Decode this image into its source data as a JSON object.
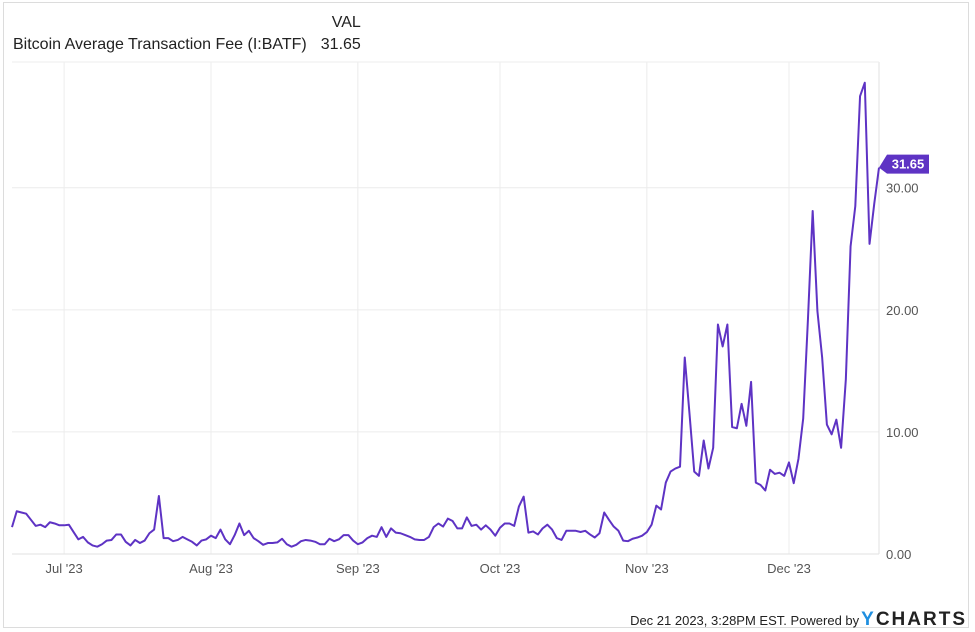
{
  "header": {
    "value_column_label": "VAL",
    "series_label": "Bitcoin Average Transaction Fee (I:BATF)",
    "series_value": "31.65"
  },
  "footer": {
    "timestamp": "Dec 21 2023, 3:28PM EST. Powered by",
    "logo_y": "Y",
    "logo_rest": "CHARTS"
  },
  "colors": {
    "line": "#5e33c4",
    "grid": "#ececec",
    "label_bg": "#5e33c4"
  },
  "chart_data": {
    "type": "line",
    "title": "",
    "xlabel": "",
    "ylabel": "",
    "ylim": [
      0,
      40.3
    ],
    "grid": true,
    "y_axis_side": "right",
    "y_ticks": [
      "0.00",
      "10.00",
      "20.00",
      "30.00"
    ],
    "x_ticks": [
      {
        "label": "Jul '23",
        "date": "2023-07-01"
      },
      {
        "label": "Aug '23",
        "date": "2023-08-01"
      },
      {
        "label": "Sep '23",
        "date": "2023-09-01"
      },
      {
        "label": "Oct '23",
        "date": "2023-10-01"
      },
      {
        "label": "Nov '23",
        "date": "2023-11-01"
      },
      {
        "label": "Dec '23",
        "date": "2023-12-01"
      }
    ],
    "last_value_label": "31.65",
    "x_range": [
      "2023-06-20",
      "2023-12-20"
    ],
    "x_step": "daily",
    "series": [
      {
        "values": [
          2.2,
          3.5,
          3.4,
          3.3,
          2.8,
          2.3,
          2.4,
          2.2,
          2.6,
          2.5,
          2.35,
          2.35,
          2.4,
          1.8,
          1.2,
          1.4,
          0.95,
          0.7,
          0.6,
          0.8,
          1.1,
          1.15,
          1.6,
          1.6,
          1.0,
          0.7,
          1.15,
          0.9,
          1.1,
          1.7,
          2.0,
          4.75,
          1.3,
          1.3,
          1.05,
          1.15,
          1.4,
          1.2,
          1.0,
          0.7,
          1.1,
          1.2,
          1.5,
          1.3,
          2.0,
          1.2,
          0.8,
          1.55,
          2.5,
          1.55,
          1.9,
          1.3,
          1.05,
          0.75,
          0.9,
          0.9,
          0.95,
          1.25,
          0.8,
          0.6,
          0.75,
          1.05,
          1.15,
          1.1,
          1.0,
          0.8,
          0.8,
          1.25,
          1.05,
          1.2,
          1.55,
          1.55,
          1.1,
          0.8,
          0.95,
          1.3,
          1.5,
          1.4,
          2.2,
          1.4,
          2.1,
          1.75,
          1.7,
          1.55,
          1.4,
          1.2,
          1.15,
          1.15,
          1.4,
          2.2,
          2.5,
          2.25,
          2.9,
          2.7,
          2.1,
          2.1,
          3.0,
          2.3,
          2.4,
          2.0,
          2.35,
          2.0,
          1.5,
          2.15,
          2.5,
          2.5,
          2.3,
          3.9,
          4.7,
          1.75,
          1.85,
          1.6,
          2.1,
          2.4,
          2.0,
          1.3,
          1.15,
          1.9,
          1.9,
          1.9,
          1.8,
          1.9,
          1.6,
          1.35,
          1.7,
          3.4,
          2.8,
          2.25,
          1.9,
          1.1,
          1.05,
          1.25,
          1.35,
          1.5,
          1.8,
          2.4,
          3.96,
          3.65,
          5.85,
          6.75,
          7.0,
          7.15,
          16.1,
          11.5,
          6.75,
          6.4,
          9.3,
          7.0,
          8.7,
          18.8,
          17.0,
          18.8,
          10.4,
          10.3,
          12.3,
          10.5,
          14.1,
          5.85,
          5.65,
          5.2,
          6.9,
          6.56,
          6.66,
          6.4,
          7.5,
          5.8,
          7.8,
          11.1,
          19.2,
          28.1,
          19.9,
          16.1,
          10.6,
          9.8,
          11.0,
          8.7,
          14.3,
          25.2,
          28.5,
          37.5,
          38.6,
          25.4,
          28.7,
          31.65
        ]
      }
    ]
  }
}
